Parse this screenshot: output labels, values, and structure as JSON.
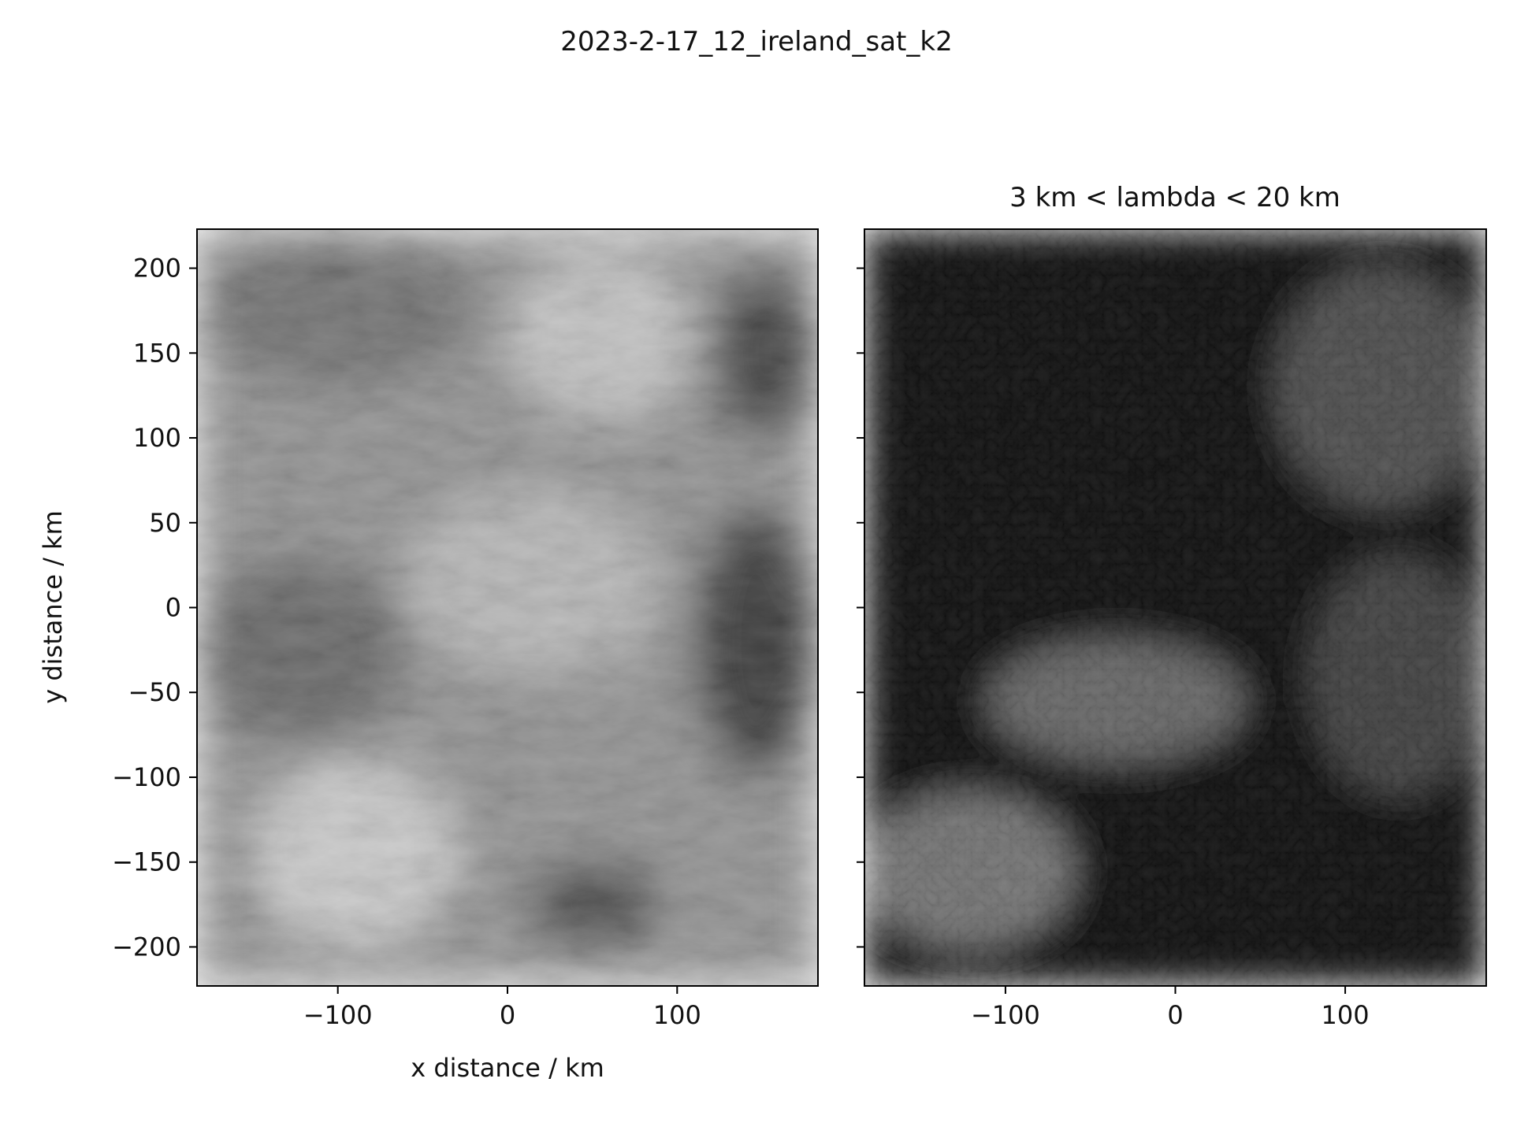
{
  "figure": {
    "suptitle": "2023-2-17_12_ireland_sat_k2"
  },
  "chart_data": [
    {
      "type": "heatmap",
      "panel": "left",
      "title": "",
      "xlabel": "x distance / km",
      "ylabel": "y distance / km",
      "xlim": [
        -183,
        183
      ],
      "ylim": [
        -223,
        223
      ],
      "xticks": [
        -100,
        0,
        100
      ],
      "xtick_labels": [
        "−100",
        "0",
        "100"
      ],
      "yticks": [
        -200,
        -150,
        -100,
        -50,
        0,
        50,
        100,
        150,
        200
      ],
      "ytick_labels": [
        "−200",
        "−150",
        "−100",
        "−50",
        "0",
        "50",
        "100",
        "150",
        "200"
      ],
      "colormap": "grayscale",
      "content": "satellite cloud imagery",
      "regions": [
        {
          "x": [
            -183,
            183
          ],
          "y": [
            -223,
            223
          ],
          "level": 0.55
        },
        {
          "x": [
            -183,
            -20
          ],
          "y": [
            130,
            223
          ],
          "level": 0.42
        },
        {
          "x": [
            -183,
            -60
          ],
          "y": [
            -80,
            30
          ],
          "level": 0.38
        },
        {
          "x": [
            -150,
            -30
          ],
          "y": [
            -200,
            -90
          ],
          "level": 0.78
        },
        {
          "x": [
            0,
            110
          ],
          "y": [
            110,
            210
          ],
          "level": 0.75
        },
        {
          "x": [
            -60,
            90
          ],
          "y": [
            -40,
            70
          ],
          "level": 0.7
        },
        {
          "x": [
            110,
            183
          ],
          "y": [
            -100,
            60
          ],
          "level": 0.18
        },
        {
          "x": [
            120,
            183
          ],
          "y": [
            100,
            200
          ],
          "level": 0.22
        },
        {
          "x": [
            10,
            90
          ],
          "y": [
            -200,
            -150
          ],
          "level": 0.25
        }
      ]
    },
    {
      "type": "heatmap",
      "panel": "right",
      "title": "3 km < lambda < 20 km",
      "xlabel": "",
      "ylabel": "",
      "xlim": [
        -183,
        183
      ],
      "ylim": [
        -223,
        223
      ],
      "xticks": [
        -100,
        0,
        100
      ],
      "xtick_labels": [
        "−100",
        "0",
        "100"
      ],
      "yticks": [
        -200,
        -150,
        -100,
        -50,
        0,
        50,
        100,
        150,
        200
      ],
      "ytick_labels": [],
      "colormap": "grayscale",
      "content": "band-pass filtered magnitude",
      "regions": [
        {
          "x": [
            -183,
            183
          ],
          "y": [
            -223,
            223
          ],
          "level": 0.06
        },
        {
          "x": [
            -183,
            -60
          ],
          "y": [
            -200,
            -110
          ],
          "level": 0.45
        },
        {
          "x": [
            -110,
            40
          ],
          "y": [
            -90,
            -20
          ],
          "level": 0.4
        },
        {
          "x": [
            60,
            183
          ],
          "y": [
            60,
            200
          ],
          "level": 0.3
        },
        {
          "x": [
            80,
            183
          ],
          "y": [
            -110,
            30
          ],
          "level": 0.25
        }
      ]
    }
  ]
}
